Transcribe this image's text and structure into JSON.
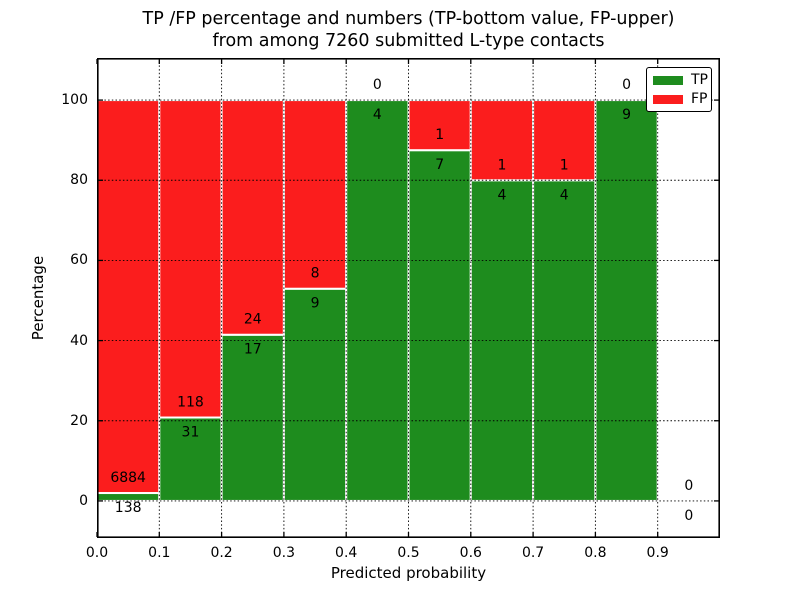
{
  "chart_data": {
    "type": "bar",
    "stacked": true,
    "title": "TP /FP percentage and numbers (TP-bottom value, FP-upper) from among 7260 submitted L-type contacts",
    "title_lines": [
      "TP /FP percentage and numbers (TP-bottom value, FP-upper)",
      "from among 7260 submitted L-type contacts"
    ],
    "xlabel": "Predicted probability",
    "ylabel": "Percentage",
    "total_contacts": 7260,
    "xlim": [
      0.0,
      1.0
    ],
    "ylim": [
      -9.25,
      110.5
    ],
    "xticks": [
      "0.0",
      "0.1",
      "0.2",
      "0.3",
      "0.4",
      "0.5",
      "0.6",
      "0.7",
      "0.8",
      "0.9"
    ],
    "yticks": [
      "0",
      "20",
      "40",
      "60",
      "80",
      "100"
    ],
    "ytick_values": [
      0,
      20,
      40,
      60,
      80,
      100
    ],
    "grid": "dotted",
    "bins": [
      {
        "range": [
          0.0,
          0.1
        ],
        "tp_count": 138,
        "fp_count": 6884,
        "tp_pct": 1.97,
        "fp_pct": 98.03
      },
      {
        "range": [
          0.1,
          0.2
        ],
        "tp_count": 31,
        "fp_count": 118,
        "tp_pct": 20.81,
        "fp_pct": 79.19
      },
      {
        "range": [
          0.2,
          0.3
        ],
        "tp_count": 17,
        "fp_count": 24,
        "tp_pct": 41.46,
        "fp_pct": 58.54
      },
      {
        "range": [
          0.3,
          0.4
        ],
        "tp_count": 9,
        "fp_count": 8,
        "tp_pct": 52.94,
        "fp_pct": 47.06
      },
      {
        "range": [
          0.4,
          0.5
        ],
        "tp_count": 4,
        "fp_count": 0,
        "tp_pct": 100,
        "fp_pct": 0
      },
      {
        "range": [
          0.5,
          0.6
        ],
        "tp_count": 7,
        "fp_count": 1,
        "tp_pct": 87.5,
        "fp_pct": 12.5
      },
      {
        "range": [
          0.6,
          0.7
        ],
        "tp_count": 4,
        "fp_count": 1,
        "tp_pct": 80,
        "fp_pct": 20
      },
      {
        "range": [
          0.7,
          0.8
        ],
        "tp_count": 4,
        "fp_count": 1,
        "tp_pct": 80,
        "fp_pct": 20
      },
      {
        "range": [
          0.8,
          0.9
        ],
        "tp_count": 9,
        "fp_count": 0,
        "tp_pct": 100,
        "fp_pct": 0
      },
      {
        "range": [
          0.9,
          1.0
        ],
        "tp_count": 0,
        "fp_count": 0,
        "tp_pct": 0,
        "fp_pct": 0
      }
    ],
    "legend": {
      "position": "upper right",
      "entries": [
        {
          "label": "TP",
          "color": "#1e8c1e"
        },
        {
          "label": "FP",
          "color": "#fb1d1d"
        }
      ]
    },
    "colors": {
      "tp": "#1e8c1e",
      "fp": "#fb1d1d",
      "bar_edge": "#ffffff",
      "grid": "#000000",
      "frame": "#000000",
      "text": "#000000",
      "background": "#ffffff"
    }
  }
}
